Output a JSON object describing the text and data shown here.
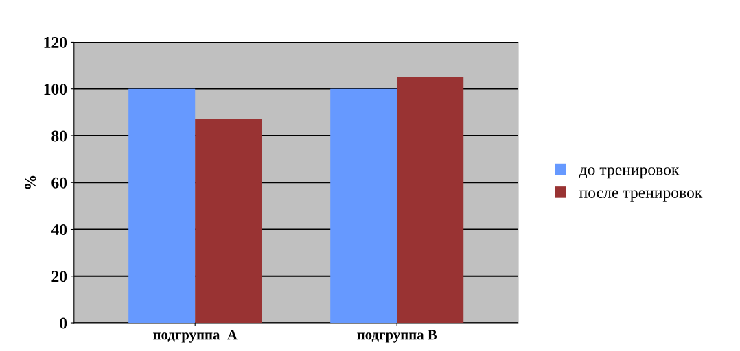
{
  "chart_data": {
    "type": "bar",
    "ylabel": "%",
    "categories": [
      "подгруппа  А",
      "подгруппа В"
    ],
    "series": [
      {
        "name": "до тренировок",
        "color": "#6699ff",
        "values": [
          100,
          100
        ]
      },
      {
        "name": "после тренировок",
        "color": "#993333",
        "values": [
          87,
          105
        ]
      }
    ],
    "ylim": [
      0,
      120
    ],
    "yticks": [
      0,
      20,
      40,
      60,
      80,
      100,
      120
    ],
    "grid": "y",
    "legend": "right"
  }
}
